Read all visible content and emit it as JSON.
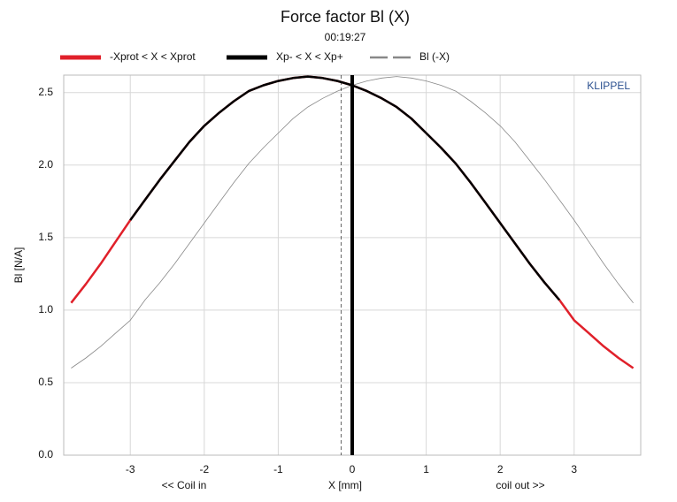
{
  "chart_data": {
    "type": "line",
    "title": "Force factor Bl (X)",
    "subtitle": "00:19:27",
    "xlabel": "X [mm]",
    "ylabel": "Bl [N/A]",
    "annotations": [
      "<< Coil in",
      "coil out >>",
      "KLIPPEL"
    ],
    "x": [
      -3.8,
      -3.6,
      -3.4,
      -3.2,
      -3.0,
      -2.8,
      -2.6,
      -2.4,
      -2.2,
      -2.0,
      -1.8,
      -1.6,
      -1.4,
      -1.2,
      -1.0,
      -0.8,
      -0.6,
      -0.4,
      -0.2,
      0,
      0.2,
      0.4,
      0.6,
      0.8,
      1.0,
      1.2,
      1.4,
      1.6,
      1.8,
      2.0,
      2.2,
      2.4,
      2.6,
      2.8,
      3.0,
      3.2,
      3.4,
      3.6,
      3.8
    ],
    "series": [
      {
        "name": "-Xprot < X < Xprot",
        "color": "#e0202a",
        "width": 2.5,
        "dash": false,
        "values": [
          1.05,
          1.18,
          1.32,
          1.47,
          1.62,
          1.76,
          1.9,
          2.03,
          2.16,
          2.27,
          2.36,
          2.44,
          2.51,
          2.55,
          2.58,
          2.6,
          2.61,
          2.6,
          2.58,
          2.55,
          2.51,
          2.46,
          2.4,
          2.32,
          2.22,
          2.12,
          2.01,
          1.88,
          1.74,
          1.6,
          1.46,
          1.32,
          1.19,
          1.07,
          0.93,
          0.84,
          0.75,
          0.67,
          0.6
        ]
      },
      {
        "name": "Xp- < X < Xp+",
        "color": "#000000",
        "width": 2.5,
        "dash": false,
        "values": [
          null,
          null,
          null,
          null,
          1.62,
          1.76,
          1.9,
          2.03,
          2.16,
          2.27,
          2.36,
          2.44,
          2.51,
          2.55,
          2.58,
          2.6,
          2.61,
          2.6,
          2.58,
          2.55,
          2.51,
          2.46,
          2.4,
          2.32,
          2.22,
          2.12,
          2.01,
          1.88,
          1.74,
          1.6,
          1.46,
          1.32,
          1.19,
          1.07,
          null,
          null,
          null,
          null,
          null
        ]
      },
      {
        "name": "Bl (-X)",
        "color": "#888888",
        "width": 0.8,
        "dash": true,
        "values": [
          0.6,
          0.67,
          0.75,
          0.84,
          0.93,
          1.07,
          1.19,
          1.32,
          1.46,
          1.6,
          1.74,
          1.88,
          2.01,
          2.12,
          2.22,
          2.32,
          2.4,
          2.46,
          2.51,
          2.55,
          2.58,
          2.6,
          2.61,
          2.6,
          2.58,
          2.55,
          2.51,
          2.44,
          2.36,
          2.27,
          2.16,
          2.03,
          1.9,
          1.76,
          1.62,
          1.47,
          1.32,
          1.18,
          1.05
        ]
      }
    ],
    "vertical_lines": [
      {
        "x": 0,
        "dash": false,
        "width": 4
      },
      {
        "x": -0.15,
        "dash": true,
        "width": 1
      }
    ],
    "xlim": [
      -3.9,
      3.9
    ],
    "xticks": [
      -3,
      -2,
      -1,
      0,
      1,
      2,
      3
    ],
    "ylim": [
      0,
      2.62
    ],
    "yticks": [
      {
        "value": 0,
        "label": "0.0"
      },
      0.5,
      {
        "value": 1,
        "label": "1.0"
      },
      1.5,
      {
        "value": 2,
        "label": "2.0"
      },
      2.5
    ],
    "grid": true
  }
}
